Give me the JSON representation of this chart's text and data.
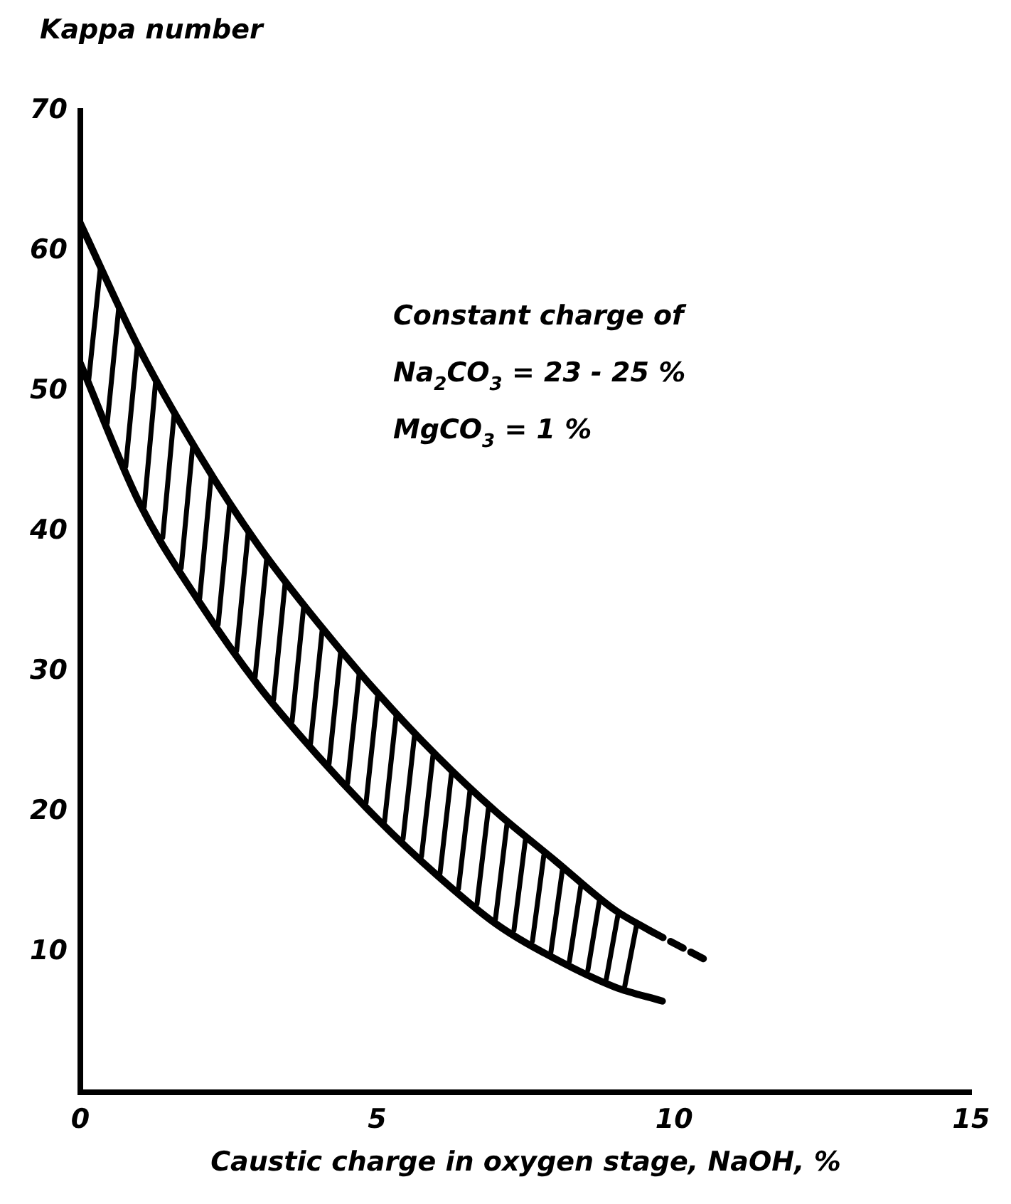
{
  "chart_data": {
    "type": "line",
    "xlabel": "Caustic charge in oxygen stage, NaOH, %",
    "ylabel": "Kappa number",
    "annotations": [
      "Constant charge of",
      "Na$_{2}$CO$_{3}$ = 23 - 25 %",
      "MgCO$_{3}$ = 1 %"
    ],
    "series": [
      {
        "type": "line",
        "color": "#000000",
        "line_style": "solid",
        "x": [
          0,
          1,
          2,
          3,
          4,
          5,
          6,
          7,
          8,
          9,
          9.6
        ],
        "values": [
          62,
          53,
          45.5,
          39,
          33.5,
          28.5,
          24,
          20,
          16.5,
          13,
          11.5
        ]
      },
      {
        "type": "line",
        "color": "#000000",
        "line_style": "solid",
        "x": [
          0,
          1,
          2,
          3,
          4,
          5,
          6,
          7,
          8,
          9,
          9.8
        ],
        "values": [
          52,
          42,
          35,
          29,
          24,
          19.5,
          15.5,
          12,
          9.5,
          7.5,
          6.5
        ]
      },
      {
        "type": "line",
        "color": "#000000",
        "line_style": "dashed",
        "x": [
          9.6,
          10.5
        ],
        "values": [
          11.5,
          9.5
        ]
      }
    ],
    "xlim": [
      0,
      15
    ],
    "xticks": [
      0,
      5,
      10,
      15
    ],
    "ylim": [
      0,
      70
    ],
    "yticks": [
      10,
      20,
      30,
      40,
      50,
      60,
      70
    ],
    "grid": false,
    "legend": false,
    "marker": "none"
  }
}
